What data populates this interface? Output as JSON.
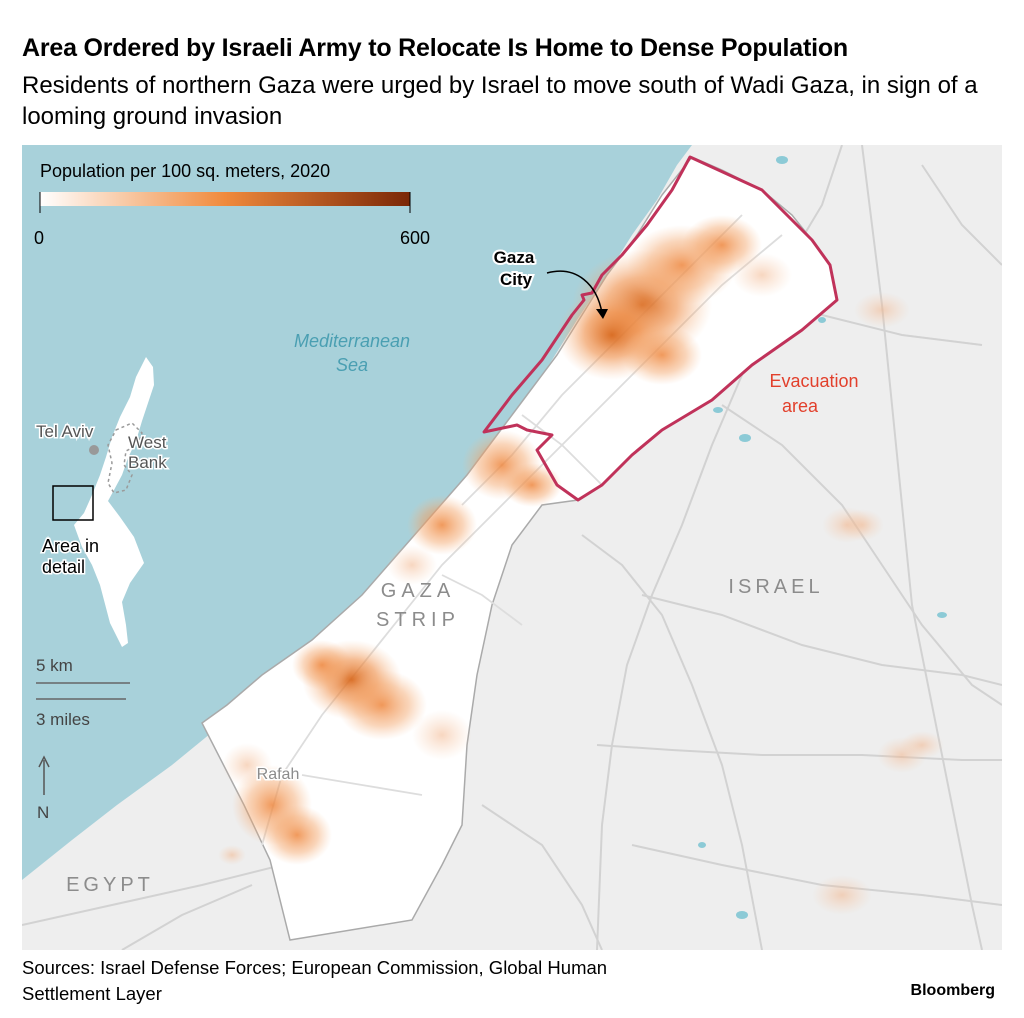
{
  "title": "Area Ordered by Israeli Army to Relocate Is Home to Dense Population",
  "subtitle": "Residents of northern Gaza were urged by Israel to move south of Wadi Gaza, in sign of a looming ground invasion",
  "legend": {
    "title": "Population per 100 sq. meters, 2020",
    "min_label": "0",
    "max_label": "600",
    "scale": {
      "min": 0,
      "max": 600
    },
    "colors": [
      "#ffffff",
      "#f08a3c",
      "#7a2606"
    ]
  },
  "map": {
    "sea_label_line1": "Mediterranean",
    "sea_label_line2": "Sea",
    "gaza_city_line1": "Gaza",
    "gaza_city_line2": "City",
    "evac_line1": "Evacuation",
    "evac_line2": "area",
    "strip_line1": "GAZA",
    "strip_line2": "STRIP",
    "israel_label": "ISRAEL",
    "egypt_label": "EGYPT",
    "rafah_label": "Rafah",
    "colors": {
      "sea": "#a8d1da",
      "land": "#eeeeee",
      "strip": "#ffffff",
      "evacuation_outline": "#c0325a",
      "evacuation_text": "#e2402c",
      "sea_text": "#4a9fb2",
      "water": "#8ccad6"
    }
  },
  "inset": {
    "tel_aviv": "Tel Aviv",
    "west_bank_line1": "West",
    "west_bank_line2": "Bank",
    "area_line1": "Area in",
    "area_line2": "detail"
  },
  "scale_bar": {
    "km": "5 km",
    "miles": "3 miles"
  },
  "north_arrow": "N",
  "sources_line1": "Sources: Israel Defense Forces; European Commission, Global Human",
  "sources_line2": "Settlement Layer",
  "brand": "Bloomberg"
}
